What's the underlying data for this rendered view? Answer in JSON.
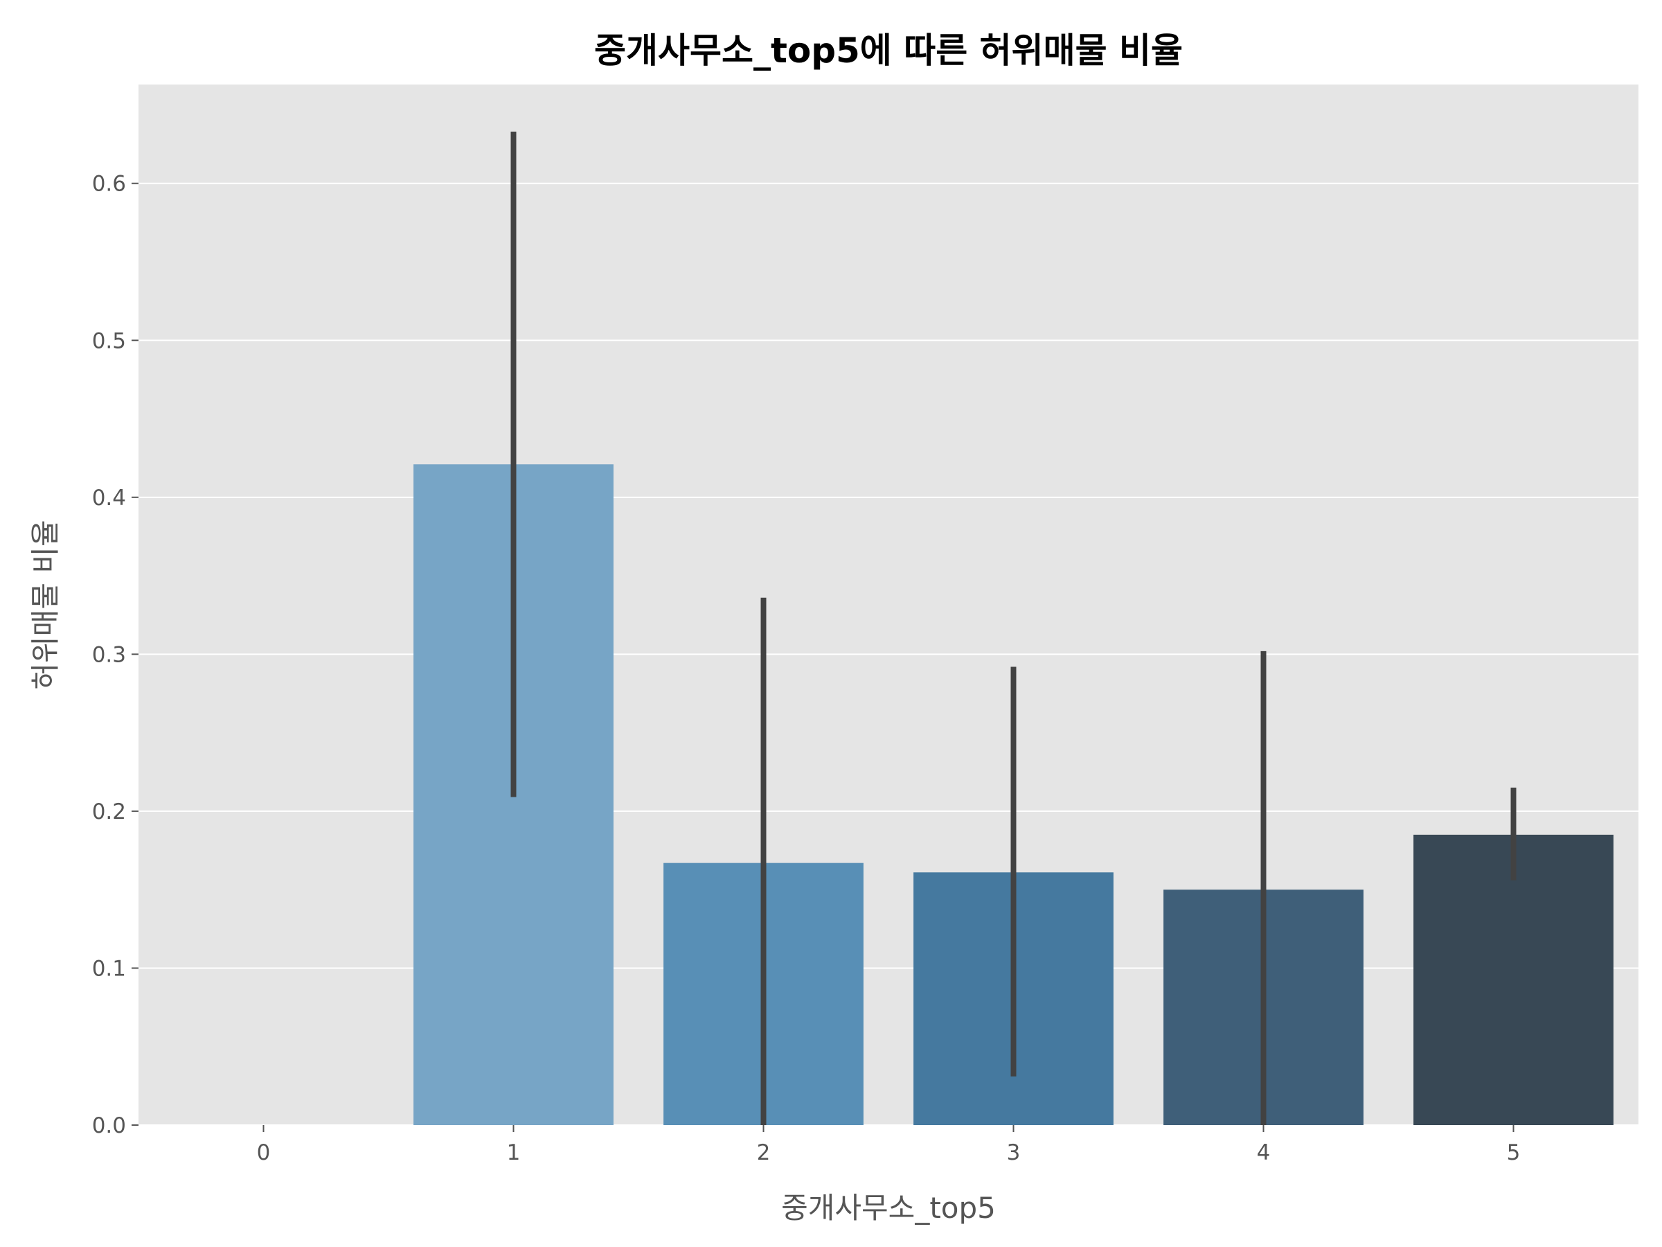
{
  "chart_data": {
    "type": "bar",
    "title": "중개사무소_top5에 따른 허위매물 비율",
    "xlabel": "중개사무소_top5",
    "ylabel": "허위매물 비율",
    "categories": [
      "0",
      "1",
      "2",
      "3",
      "4",
      "5"
    ],
    "values": [
      0.0,
      0.421,
      0.167,
      0.161,
      0.15,
      0.185
    ],
    "error_bars": [
      null,
      [
        0.209,
        0.633
      ],
      [
        0.0,
        0.336
      ],
      [
        0.031,
        0.292
      ],
      [
        0.0,
        0.302
      ],
      [
        0.156,
        0.215
      ]
    ],
    "yticks": [
      "0.0",
      "0.1",
      "0.2",
      "0.3",
      "0.4",
      "0.5",
      "0.6"
    ],
    "ylim": [
      0,
      0.663
    ],
    "grid": true,
    "colors": [
      "#77a5c6",
      "#77a5c6",
      "#588fb6",
      "#45799f",
      "#3f5f79",
      "#384855"
    ],
    "error_color": "#424242",
    "background": "#e5e5e5"
  }
}
